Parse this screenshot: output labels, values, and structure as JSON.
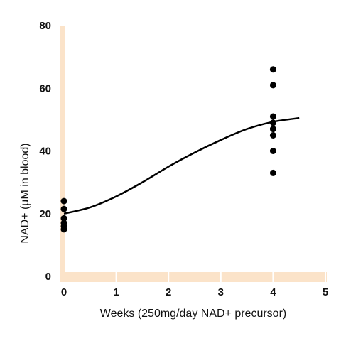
{
  "chart_data": {
    "type": "scatter",
    "title": "",
    "xlabel": "Weeks (250mg/day NAD+ precursor)",
    "ylabel": "NAD+ (µM in blood)",
    "xlim": [
      0,
      5
    ],
    "ylim": [
      0,
      80
    ],
    "x_ticks": [
      "0",
      "1",
      "2",
      "3",
      "4",
      "5"
    ],
    "y_ticks": [
      "0",
      "20",
      "40",
      "60",
      "80"
    ],
    "grid": false,
    "axis_color": "#fbe3c9",
    "point_color": "#000000",
    "line_color": "#000000",
    "series": [
      {
        "type": "scatter",
        "points": [
          {
            "x": 0,
            "y": 24
          },
          {
            "x": 0,
            "y": 21.5
          },
          {
            "x": 0,
            "y": 18.5
          },
          {
            "x": 0,
            "y": 17
          },
          {
            "x": 0,
            "y": 16
          },
          {
            "x": 0,
            "y": 15
          },
          {
            "x": 4,
            "y": 66
          },
          {
            "x": 4,
            "y": 61
          },
          {
            "x": 4,
            "y": 51
          },
          {
            "x": 4,
            "y": 49
          },
          {
            "x": 4,
            "y": 47
          },
          {
            "x": 4,
            "y": 45
          },
          {
            "x": 4,
            "y": 40
          },
          {
            "x": 4,
            "y": 33
          }
        ]
      },
      {
        "type": "line",
        "points": [
          {
            "x": 0,
            "y": 20
          },
          {
            "x": 0.5,
            "y": 22
          },
          {
            "x": 1,
            "y": 25.5
          },
          {
            "x": 1.5,
            "y": 30
          },
          {
            "x": 2,
            "y": 35
          },
          {
            "x": 2.5,
            "y": 39.5
          },
          {
            "x": 3,
            "y": 43.5
          },
          {
            "x": 3.5,
            "y": 47
          },
          {
            "x": 4,
            "y": 49.3
          },
          {
            "x": 4.5,
            "y": 50.5
          }
        ]
      }
    ]
  }
}
